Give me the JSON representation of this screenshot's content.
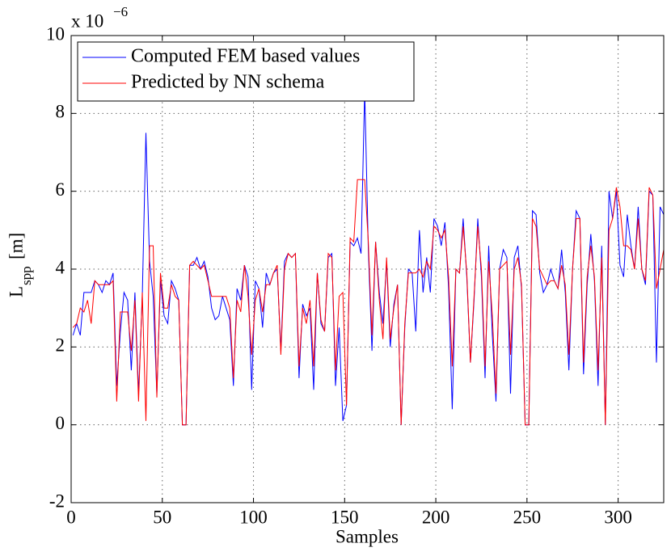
{
  "chart_data": {
    "type": "line",
    "y_exponent_label": {
      "base": "x 10",
      "exponent": "−6"
    },
    "xlabel": "Samples",
    "ylabel": {
      "main": "L",
      "sub": "spp",
      "rest": "[m]"
    },
    "xlim": [
      0,
      325
    ],
    "xticks": [
      0,
      50,
      100,
      150,
      200,
      250,
      300
    ],
    "ylim": [
      -2,
      10
    ],
    "yticks": [
      -2,
      0,
      2,
      4,
      6,
      8,
      10
    ],
    "grid": true,
    "legend": "upper-left",
    "x": [
      1,
      3,
      5,
      7,
      9,
      11,
      13,
      15,
      17,
      19,
      21,
      23,
      25,
      27,
      29,
      31,
      33,
      35,
      37,
      39,
      41,
      43,
      45,
      47,
      49,
      51,
      53,
      55,
      57,
      59,
      61,
      63,
      65,
      67,
      69,
      71,
      73,
      75,
      77,
      79,
      81,
      83,
      85,
      87,
      89,
      91,
      93,
      95,
      97,
      99,
      101,
      103,
      105,
      107,
      109,
      111,
      113,
      115,
      117,
      119,
      121,
      123,
      125,
      127,
      129,
      131,
      133,
      135,
      137,
      139,
      141,
      143,
      145,
      147,
      149,
      151,
      153,
      155,
      157,
      159,
      161,
      163,
      165,
      167,
      169,
      171,
      173,
      175,
      177,
      179,
      181,
      183,
      185,
      187,
      189,
      191,
      193,
      195,
      197,
      199,
      201,
      203,
      205,
      207,
      209,
      211,
      213,
      215,
      217,
      219,
      221,
      223,
      225,
      227,
      229,
      231,
      233,
      235,
      237,
      239,
      241,
      243,
      245,
      247,
      249,
      251,
      253,
      255,
      257,
      259,
      261,
      263,
      265,
      267,
      269,
      271,
      273,
      275,
      277,
      279,
      281,
      283,
      285,
      287,
      289,
      291,
      293,
      295,
      297,
      299,
      301,
      303,
      305,
      307,
      309,
      311,
      313,
      315,
      317,
      319,
      321,
      323,
      325
    ],
    "series": [
      {
        "name": "Computed FEM based values",
        "color": "#0000ff",
        "values": [
          2.3,
          2.6,
          2.3,
          3.4,
          3.4,
          3.4,
          3.7,
          3.6,
          3.4,
          3.7,
          3.6,
          3.9,
          1.0,
          2.4,
          3.4,
          3.2,
          1.4,
          3.4,
          0.8,
          3.3,
          7.5,
          4.2,
          3.3,
          0.8,
          3.7,
          2.8,
          2.6,
          3.7,
          3.5,
          3.2,
          0.0,
          0.0,
          4.1,
          4.1,
          4.3,
          4.0,
          4.2,
          3.8,
          3.0,
          2.7,
          2.8,
          3.3,
          3.0,
          2.7,
          1.0,
          3.5,
          3.2,
          4.1,
          3.8,
          0.9,
          3.7,
          3.5,
          2.5,
          3.9,
          3.6,
          3.9,
          4.0,
          1.9,
          4.2,
          4.4,
          4.3,
          4.4,
          1.2,
          3.1,
          2.8,
          3.0,
          0.9,
          3.9,
          2.6,
          2.4,
          4.3,
          4.4,
          1.0,
          2.5,
          0.1,
          0.5,
          4.7,
          4.6,
          4.8,
          4.4,
          8.6,
          4.5,
          1.9,
          4.7,
          3.4,
          2.6,
          4.2,
          2.0,
          3.1,
          3.6,
          0.0,
          2.5,
          4.0,
          3.9,
          2.4,
          5.0,
          3.4,
          4.3,
          3.4,
          5.3,
          5.1,
          4.6,
          5.2,
          3.5,
          0.4,
          4.0,
          3.9,
          5.3,
          3.8,
          1.6,
          3.2,
          5.3,
          3.8,
          1.2,
          4.6,
          2.3,
          0.6,
          4.0,
          4.5,
          4.3,
          0.8,
          4.3,
          4.6,
          3.5,
          0.0,
          0.0,
          5.5,
          5.4,
          3.9,
          3.4,
          3.6,
          4.0,
          3.7,
          3.5,
          4.5,
          3.4,
          1.4,
          4.0,
          5.5,
          5.3,
          1.3,
          3.6,
          4.9,
          3.7,
          1.0,
          4.6,
          0.0,
          6.0,
          5.3,
          6.0,
          4.1,
          3.8,
          5.4,
          4.6,
          4.0,
          5.6,
          4.0,
          3.6,
          6.0,
          5.9,
          1.6,
          5.6,
          5.4
        ]
      },
      {
        "name": "Predicted by NN schema",
        "color": "#ff0000",
        "values": [
          2.5,
          2.6,
          3.0,
          2.9,
          3.2,
          2.6,
          3.7,
          3.6,
          3.6,
          3.6,
          3.6,
          3.7,
          0.6,
          2.9,
          2.9,
          2.9,
          1.9,
          3.2,
          0.6,
          3.4,
          0.1,
          4.6,
          4.6,
          0.7,
          3.9,
          3.0,
          3.0,
          3.6,
          3.3,
          3.2,
          0.0,
          0.0,
          4.1,
          4.2,
          4.1,
          4.0,
          4.1,
          3.7,
          3.3,
          3.3,
          3.3,
          3.3,
          3.3,
          3.0,
          1.2,
          3.2,
          2.9,
          4.1,
          3.3,
          1.8,
          3.2,
          3.5,
          2.9,
          3.6,
          3.6,
          3.9,
          4.1,
          1.8,
          4.0,
          4.4,
          4.3,
          4.4,
          1.5,
          3.0,
          2.6,
          3.2,
          1.5,
          3.9,
          2.7,
          2.4,
          4.4,
          4.3,
          1.4,
          3.3,
          3.4,
          0.5,
          4.8,
          4.7,
          6.3,
          6.3,
          6.3,
          4.7,
          2.3,
          4.7,
          3.2,
          2.2,
          4.3,
          2.2,
          3.0,
          3.6,
          0.0,
          2.6,
          3.9,
          3.9,
          3.9,
          4.0,
          3.8,
          4.2,
          4.0,
          5.1,
          5.0,
          4.8,
          5.0,
          3.8,
          1.5,
          4.0,
          3.9,
          5.1,
          3.9,
          1.6,
          3.3,
          5.1,
          4.0,
          1.5,
          4.2,
          2.8,
          0.8,
          4.0,
          4.1,
          4.2,
          1.8,
          4.0,
          4.3,
          3.6,
          0.0,
          0.0,
          5.3,
          5.1,
          4.0,
          3.8,
          3.6,
          3.7,
          3.7,
          3.5,
          4.1,
          3.6,
          1.8,
          4.0,
          5.3,
          5.3,
          1.6,
          3.8,
          4.6,
          3.8,
          1.4,
          4.3,
          0.0,
          5.0,
          5.3,
          6.1,
          5.6,
          4.6,
          4.6,
          4.5,
          4.0,
          5.3,
          4.0,
          3.7,
          6.1,
          5.9,
          3.5,
          4.0,
          4.5
        ]
      }
    ]
  }
}
